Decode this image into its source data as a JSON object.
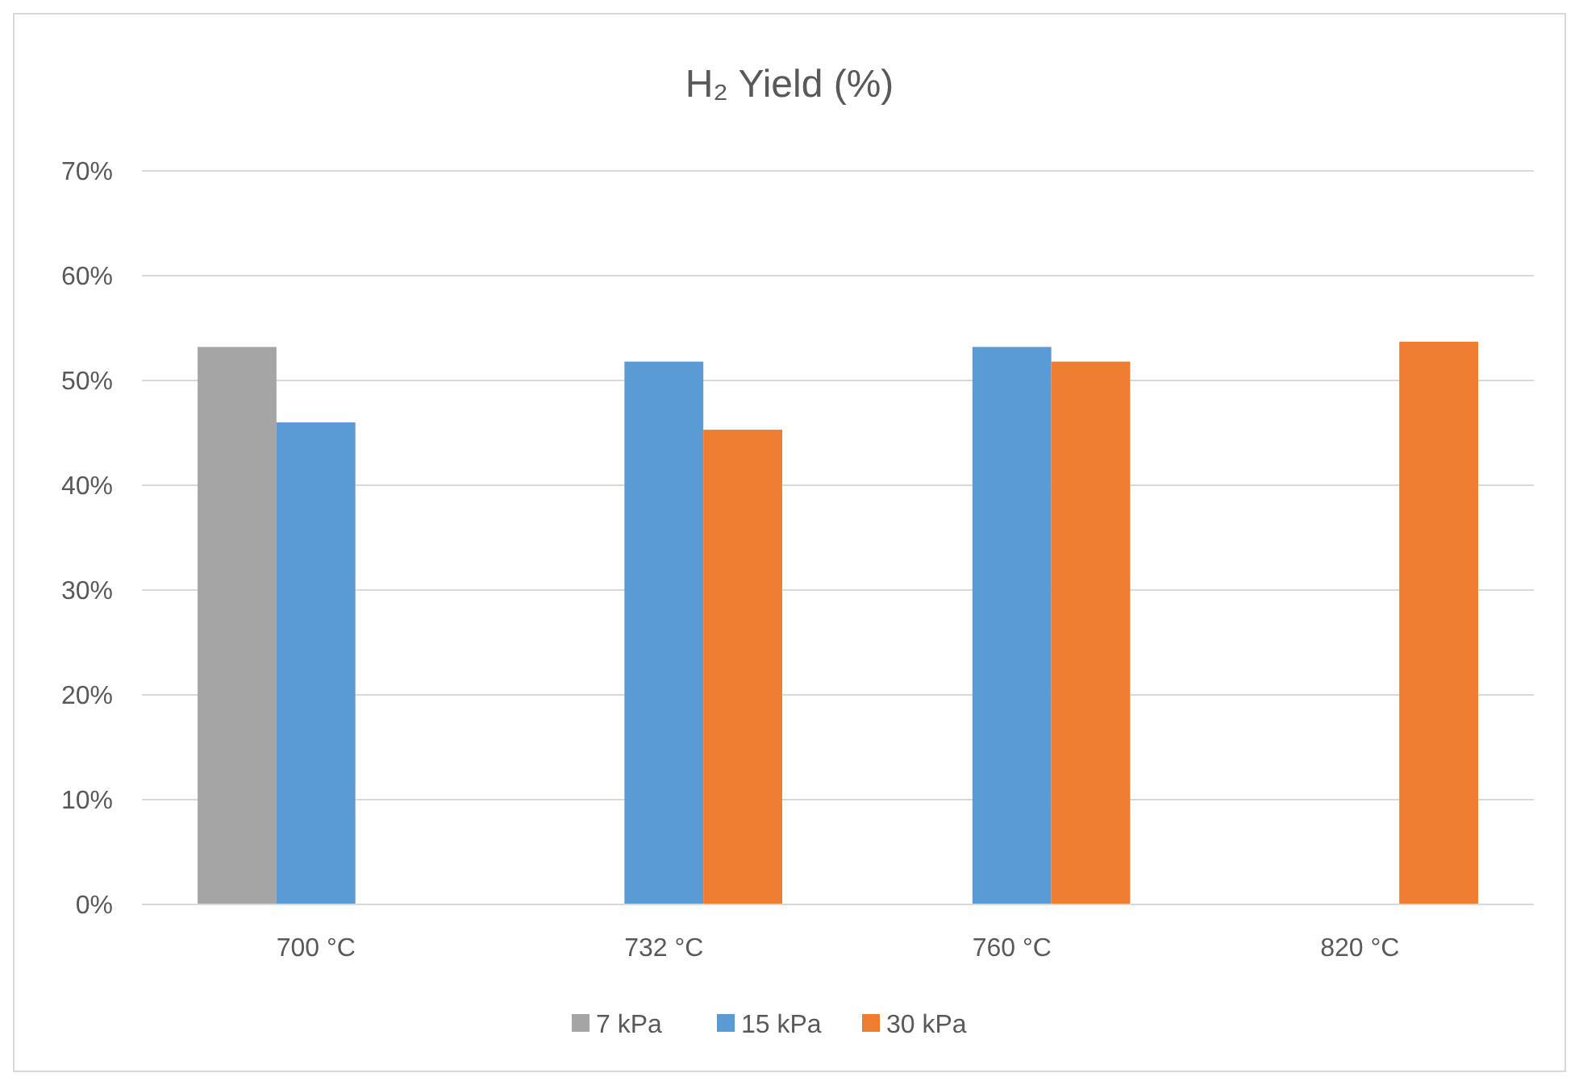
{
  "chart_data": {
    "type": "bar",
    "title": "H₂ Yield (%)",
    "categories": [
      "700 °C",
      "732 °C",
      "760 °C",
      "820 °C"
    ],
    "series": [
      {
        "name": "7 kPa",
        "color": "#a5a5a5",
        "values": [
          53.2,
          null,
          null,
          null
        ]
      },
      {
        "name": "15 kPa",
        "color": "#5b9bd5",
        "values": [
          46.0,
          51.8,
          53.2,
          null
        ]
      },
      {
        "name": "30 kPa",
        "color": "#ed7d31",
        "values": [
          null,
          45.3,
          51.8,
          53.7
        ]
      }
    ],
    "ylim": [
      0,
      70
    ],
    "yticks": [
      {
        "value": 0,
        "label": "0%"
      },
      {
        "value": 10,
        "label": "10%"
      },
      {
        "value": 20,
        "label": "20%"
      },
      {
        "value": 30,
        "label": "30%"
      },
      {
        "value": 40,
        "label": "40%"
      },
      {
        "value": 50,
        "label": "50%"
      },
      {
        "value": 60,
        "label": "60%"
      },
      {
        "value": 70,
        "label": "70%"
      }
    ],
    "grid": "y",
    "legend": "bottom"
  }
}
